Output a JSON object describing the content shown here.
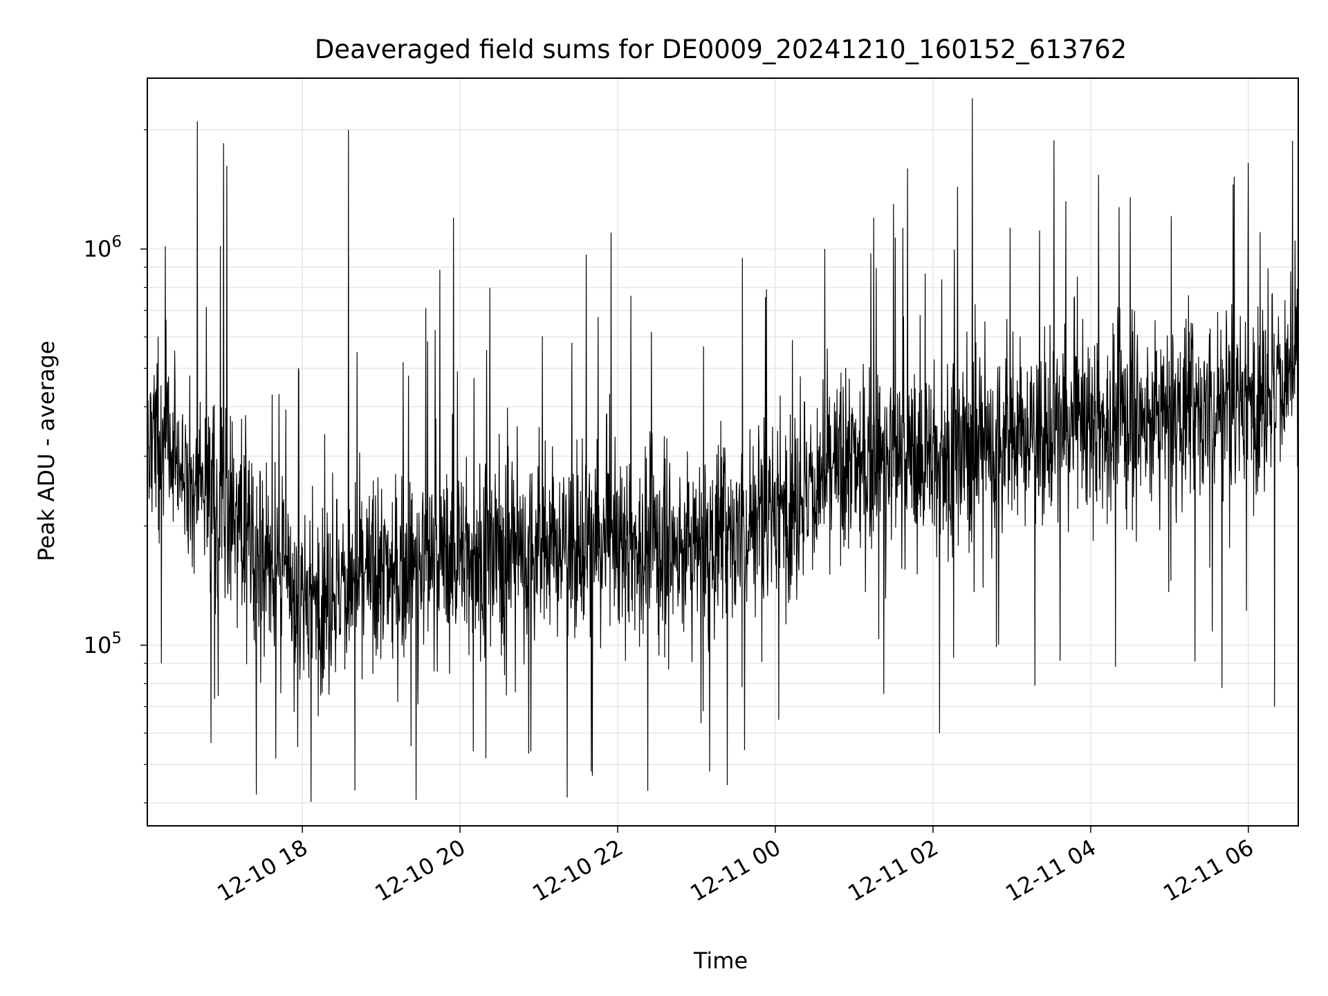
{
  "chart_data": {
    "type": "line",
    "title": "Deaveraged field sums for DE0009_20241210_160152_613762",
    "xlabel": "Time",
    "ylabel": "Peak ADU - average",
    "yscale": "log",
    "grid": true,
    "line_color": "#000000",
    "grid_color": "#e6e6e6",
    "x_tick_labels": [
      "12-10 18",
      "12-10 20",
      "12-10 22",
      "12-11 00",
      "12-11 02",
      "12-11 04",
      "12-11 06"
    ],
    "y_tick_labels": [
      {
        "base": "10",
        "exp": "5"
      },
      {
        "base": "10",
        "exp": "6"
      }
    ],
    "xlim": [
      "2024-12-10 16:02",
      "2024-12-11 06:38"
    ],
    "ylim": [
      35000,
      2700000
    ],
    "series": [
      {
        "values_summary": "dense noisy time series of field-sum peaks (several thousand samples)",
        "trend": [
          {
            "time": "2024-12-10 16:05",
            "value": 320000
          },
          {
            "time": "2024-12-10 17:00",
            "value": 230000
          },
          {
            "time": "2024-12-10 18:00",
            "value": 130000
          },
          {
            "time": "2024-12-10 19:00",
            "value": 150000
          },
          {
            "time": "2024-12-10 20:00",
            "value": 170000
          },
          {
            "time": "2024-12-10 21:00",
            "value": 175000
          },
          {
            "time": "2024-12-10 22:00",
            "value": 180000
          },
          {
            "time": "2024-12-10 23:00",
            "value": 175000
          },
          {
            "time": "2024-12-11 00:00",
            "value": 220000
          },
          {
            "time": "2024-12-11 01:00",
            "value": 290000
          },
          {
            "time": "2024-12-11 02:00",
            "value": 300000
          },
          {
            "time": "2024-12-11 03:00",
            "value": 330000
          },
          {
            "time": "2024-12-11 04:00",
            "value": 360000
          },
          {
            "time": "2024-12-11 05:00",
            "value": 380000
          },
          {
            "time": "2024-12-11 06:00",
            "value": 420000
          },
          {
            "time": "2024-12-11 06:38",
            "value": 500000
          }
        ],
        "notable_peaks": [
          {
            "time": "2024-12-10 16:40",
            "value": 2100000
          },
          {
            "time": "2024-12-10 17:00",
            "value": 1850000
          },
          {
            "time": "2024-12-10 18:35",
            "value": 2000000
          },
          {
            "time": "2024-12-10 19:55",
            "value": 1200000
          },
          {
            "time": "2024-12-10 21:55",
            "value": 1100000
          },
          {
            "time": "2024-12-10 23:35",
            "value": 950000
          },
          {
            "time": "2024-12-11 01:15",
            "value": 1200000
          },
          {
            "time": "2024-12-11 02:30",
            "value": 2400000
          },
          {
            "time": "2024-12-11 04:30",
            "value": 1350000
          },
          {
            "time": "2024-12-11 06:00",
            "value": 1650000
          }
        ],
        "notable_dips": [
          {
            "time": "2024-12-10 17:25",
            "value": 42000
          },
          {
            "time": "2024-12-10 18:40",
            "value": 43000
          },
          {
            "time": "2024-12-10 20:10",
            "value": 54000
          },
          {
            "time": "2024-12-10 21:40",
            "value": 48000
          },
          {
            "time": "2024-12-10 23:10",
            "value": 48000
          },
          {
            "time": "2024-12-11 02:05",
            "value": 60000
          },
          {
            "time": "2024-12-11 05:40",
            "value": 78000
          },
          {
            "time": "2024-12-11 06:20",
            "value": 70000
          }
        ]
      }
    ]
  }
}
